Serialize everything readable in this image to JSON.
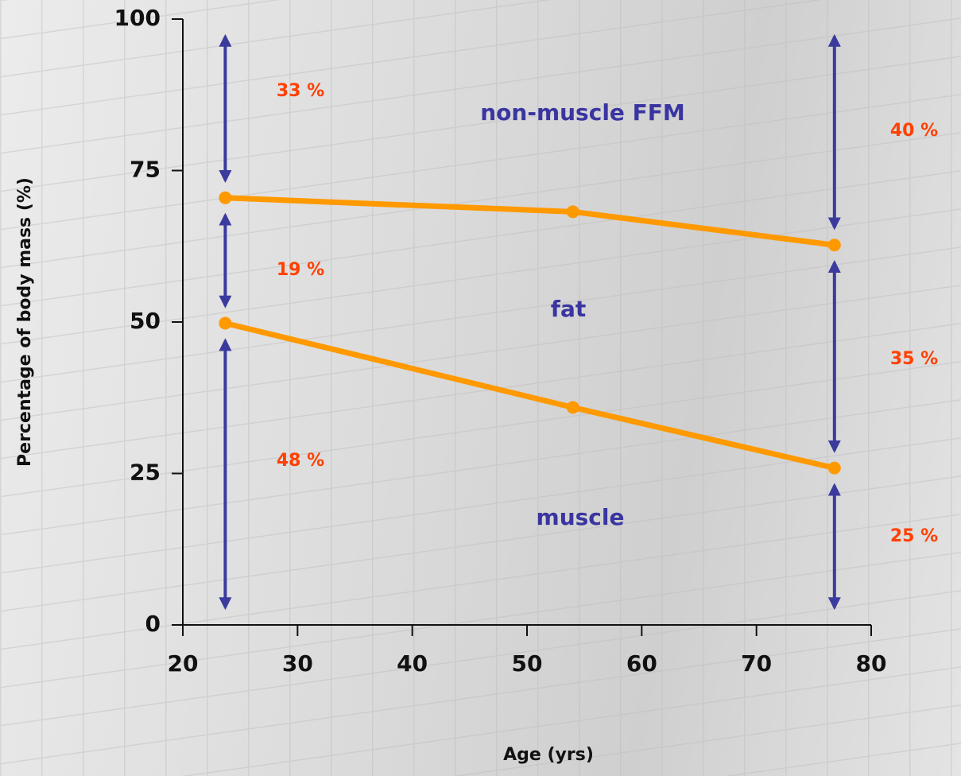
{
  "chart_data": {
    "type": "line",
    "x_label": "Age (yrs)",
    "y_label": "Percentage of body mass (%)",
    "xlim": [
      20,
      80
    ],
    "xticks": [
      20,
      30,
      40,
      50,
      60,
      70,
      80
    ],
    "ylim": [
      0,
      100
    ],
    "yticks": [
      0,
      25,
      50,
      75,
      100
    ],
    "series": [
      {
        "color": "#ff9900",
        "x": [
          23.7,
          54,
          76.8
        ],
        "values": [
          70.5,
          68.2,
          62.7
        ]
      },
      {
        "color": "#ff9900",
        "x": [
          23.7,
          54,
          76.8
        ],
        "values": [
          49.8,
          35.9,
          25.9
        ]
      }
    ],
    "arrow_color": "#3b3b9e",
    "annotations": [
      "non-muscle FFM",
      "fat",
      "muscle",
      "33 %",
      "19 %",
      "48 %",
      "40 %",
      "35 %",
      "25 %"
    ]
  }
}
